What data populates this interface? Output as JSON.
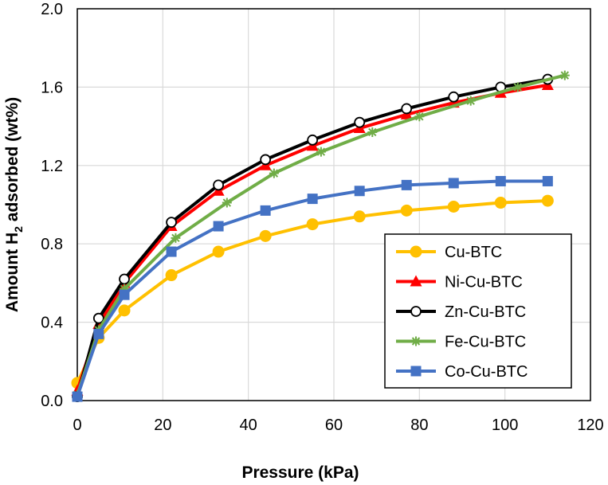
{
  "chart_data": {
    "type": "line",
    "title": "",
    "xlabel": "Pressure (kPa)",
    "ylabel": "Amount H2 adsorbed (wt%)",
    "ylabel_parts": {
      "before": "Amount  H",
      "subscript": "2",
      "after": " adsorbed (wt%)"
    },
    "xlim": [
      0,
      120
    ],
    "ylim": [
      0,
      2.0
    ],
    "xticks": [
      0,
      20,
      40,
      60,
      80,
      100,
      120
    ],
    "xtick_labels": [
      "0",
      "20",
      "40",
      "60",
      "80",
      "100",
      "120"
    ],
    "yticks": [
      0,
      0.4,
      0.8,
      1.2,
      1.6,
      2.0
    ],
    "ytick_labels": [
      "0.0",
      "0.4",
      "0.8",
      "1.2",
      "1.6",
      "2.0"
    ],
    "grid": true,
    "legend_position": "bottom-right",
    "series": [
      {
        "name": "Cu-BTC",
        "color": "#FFC000",
        "marker": "circle-filled",
        "x": [
          0,
          5,
          11,
          22,
          33,
          44,
          55,
          66,
          77,
          88,
          99,
          110
        ],
        "y": [
          0.09,
          0.32,
          0.46,
          0.64,
          0.76,
          0.84,
          0.9,
          0.94,
          0.97,
          0.99,
          1.01,
          1.02
        ]
      },
      {
        "name": "Ni-Cu-BTC",
        "color": "#FF0000",
        "marker": "triangle",
        "x": [
          0,
          5,
          11,
          22,
          33,
          44,
          55,
          66,
          77,
          88,
          99,
          110
        ],
        "y": [
          0.05,
          0.39,
          0.6,
          0.89,
          1.07,
          1.2,
          1.3,
          1.39,
          1.46,
          1.52,
          1.57,
          1.61
        ]
      },
      {
        "name": "Zn-Cu-BTC",
        "color": "#000000",
        "marker": "circle-open",
        "x": [
          0,
          5,
          11,
          22,
          33,
          44,
          55,
          66,
          77,
          88,
          99,
          110
        ],
        "y": [
          0.02,
          0.42,
          0.62,
          0.91,
          1.1,
          1.23,
          1.33,
          1.42,
          1.49,
          1.55,
          1.6,
          1.64
        ]
      },
      {
        "name": "Fe-Cu-BTC",
        "color": "#70AD47",
        "marker": "star",
        "x": [
          0,
          5,
          11,
          23,
          35,
          46,
          57,
          69,
          80,
          92,
          103,
          114
        ],
        "y": [
          0.03,
          0.36,
          0.57,
          0.83,
          1.01,
          1.16,
          1.27,
          1.37,
          1.45,
          1.53,
          1.6,
          1.66
        ]
      },
      {
        "name": "Co-Cu-BTC",
        "color": "#4472C4",
        "marker": "square",
        "x": [
          0,
          5,
          11,
          22,
          33,
          44,
          55,
          66,
          77,
          88,
          99,
          110
        ],
        "y": [
          0.02,
          0.34,
          0.54,
          0.76,
          0.89,
          0.97,
          1.03,
          1.07,
          1.1,
          1.11,
          1.12,
          1.12
        ]
      }
    ]
  }
}
